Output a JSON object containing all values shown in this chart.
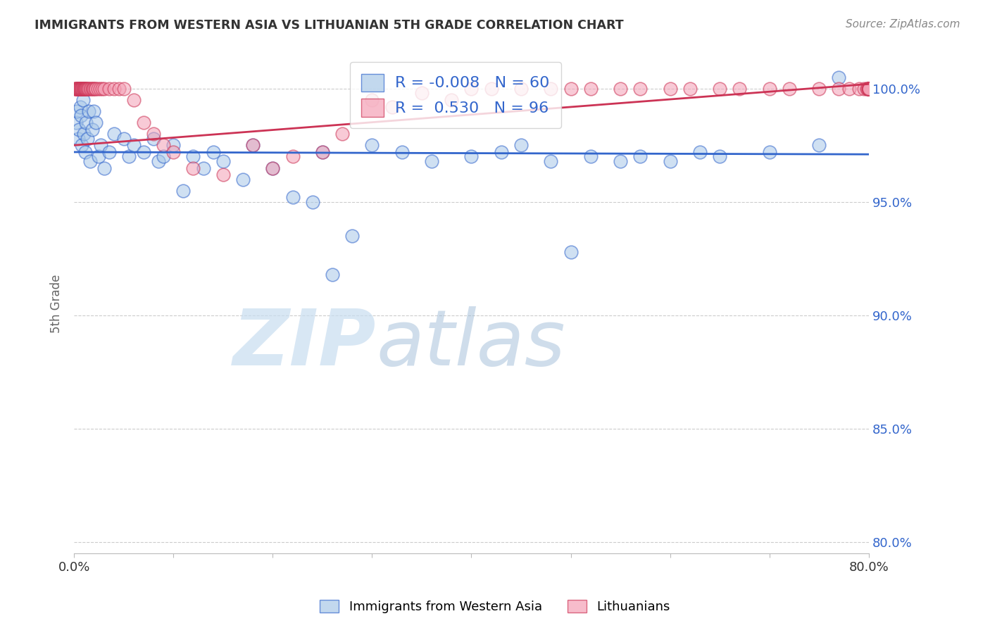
{
  "title": "IMMIGRANTS FROM WESTERN ASIA VS LITHUANIAN 5TH GRADE CORRELATION CHART",
  "source": "Source: ZipAtlas.com",
  "ylabel": "5th Grade",
  "xlim": [
    0.0,
    80.0
  ],
  "ylim": [
    79.5,
    101.5
  ],
  "yticks": [
    80.0,
    85.0,
    90.0,
    95.0,
    100.0
  ],
  "ytick_labels": [
    "80.0%",
    "85.0%",
    "90.0%",
    "95.0%",
    "100.0%"
  ],
  "blue_R": -0.008,
  "blue_N": 60,
  "pink_R": 0.53,
  "pink_N": 96,
  "blue_color": "#a8c8e8",
  "pink_color": "#f4a0b5",
  "blue_line_color": "#3366cc",
  "pink_line_color": "#cc3355",
  "legend_label_blue": "Immigrants from Western Asia",
  "legend_label_pink": "Lithuanians",
  "watermark_zip": "ZIP",
  "watermark_atlas": "atlas",
  "blue_x": [
    0.2,
    0.3,
    0.4,
    0.5,
    0.6,
    0.7,
    0.8,
    0.9,
    1.0,
    1.1,
    1.2,
    1.3,
    1.5,
    1.6,
    1.8,
    2.0,
    2.2,
    2.5,
    2.7,
    3.0,
    3.5,
    4.0,
    5.0,
    5.5,
    6.0,
    7.0,
    8.0,
    8.5,
    9.0,
    10.0,
    11.0,
    12.0,
    13.0,
    14.0,
    15.0,
    17.0,
    18.0,
    20.0,
    22.0,
    24.0,
    25.0,
    26.0,
    28.0,
    30.0,
    33.0,
    36.0,
    40.0,
    43.0,
    45.0,
    48.0,
    50.0,
    52.0,
    55.0,
    57.0,
    60.0,
    63.0,
    65.0,
    70.0,
    75.0,
    77.0
  ],
  "blue_y": [
    98.5,
    99.0,
    97.8,
    98.2,
    99.2,
    98.8,
    97.5,
    99.5,
    98.0,
    97.2,
    98.5,
    97.8,
    99.0,
    96.8,
    98.2,
    99.0,
    98.5,
    97.0,
    97.5,
    96.5,
    97.2,
    98.0,
    97.8,
    97.0,
    97.5,
    97.2,
    97.8,
    96.8,
    97.0,
    97.5,
    95.5,
    97.0,
    96.5,
    97.2,
    96.8,
    96.0,
    97.5,
    96.5,
    95.2,
    95.0,
    97.2,
    91.8,
    93.5,
    97.5,
    97.2,
    96.8,
    97.0,
    97.2,
    97.5,
    96.8,
    92.8,
    97.0,
    96.8,
    97.0,
    96.8,
    97.2,
    97.0,
    97.2,
    97.5,
    100.5
  ],
  "pink_x": [
    0.1,
    0.15,
    0.2,
    0.25,
    0.3,
    0.35,
    0.4,
    0.45,
    0.5,
    0.55,
    0.6,
    0.65,
    0.7,
    0.75,
    0.8,
    0.85,
    0.9,
    0.95,
    1.0,
    1.05,
    1.1,
    1.15,
    1.2,
    1.25,
    1.3,
    1.4,
    1.5,
    1.6,
    1.7,
    1.8,
    1.9,
    2.0,
    2.1,
    2.2,
    2.4,
    2.6,
    2.8,
    3.0,
    3.5,
    4.0,
    4.5,
    5.0,
    6.0,
    7.0,
    8.0,
    9.0,
    10.0,
    12.0,
    15.0,
    18.0,
    20.0,
    22.0,
    25.0,
    27.0,
    30.0,
    32.0,
    35.0,
    38.0,
    40.0,
    42.0,
    45.0,
    48.0,
    50.0,
    52.0,
    55.0,
    57.0,
    60.0,
    62.0,
    65.0,
    67.0,
    70.0,
    72.0,
    75.0,
    77.0,
    78.0,
    79.0,
    79.5,
    79.8,
    79.9,
    80.0,
    80.0,
    80.0,
    80.0,
    80.0,
    80.0,
    80.0,
    80.0,
    80.0,
    80.0,
    80.0,
    80.0,
    80.0,
    80.0,
    80.0,
    80.0,
    80.0
  ],
  "pink_y": [
    100.0,
    100.0,
    100.0,
    100.0,
    100.0,
    100.0,
    100.0,
    100.0,
    100.0,
    100.0,
    100.0,
    100.0,
    100.0,
    100.0,
    100.0,
    100.0,
    100.0,
    100.0,
    100.0,
    100.0,
    100.0,
    100.0,
    100.0,
    100.0,
    100.0,
    100.0,
    100.0,
    100.0,
    100.0,
    100.0,
    100.0,
    100.0,
    100.0,
    100.0,
    100.0,
    100.0,
    100.0,
    100.0,
    100.0,
    100.0,
    100.0,
    100.0,
    99.5,
    98.5,
    98.0,
    97.5,
    97.2,
    96.5,
    96.2,
    97.5,
    96.5,
    97.0,
    97.2,
    98.0,
    99.5,
    99.2,
    99.8,
    99.5,
    100.0,
    100.0,
    100.0,
    100.0,
    100.0,
    100.0,
    100.0,
    100.0,
    100.0,
    100.0,
    100.0,
    100.0,
    100.0,
    100.0,
    100.0,
    100.0,
    100.0,
    100.0,
    100.0,
    100.0,
    100.0,
    100.0,
    100.0,
    100.0,
    100.0,
    100.0,
    100.0,
    100.0,
    100.0,
    100.0,
    100.0,
    100.0,
    100.0,
    100.0,
    100.0,
    100.0,
    100.0,
    100.0
  ],
  "blue_trend_y0": 97.2,
  "blue_trend_y1": 97.1,
  "pink_trend_y0": 97.5,
  "pink_trend_y1": 100.2
}
